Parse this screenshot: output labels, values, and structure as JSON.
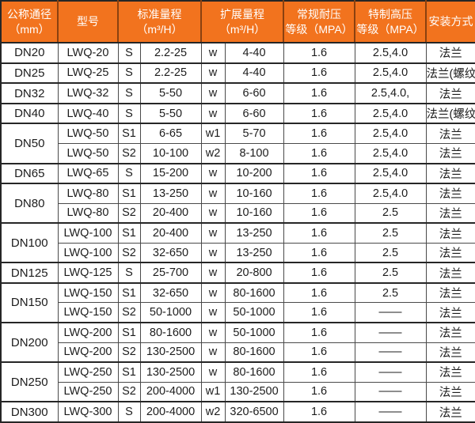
{
  "colors": {
    "header_bg": "#F2731E",
    "header_separator": "#8A4110",
    "header_text": "#FFFFFF",
    "grid_line": "#4A4A4A",
    "grid_line_strong": "#262626",
    "body_text": "#1C1C1C"
  },
  "table": {
    "headers": [
      {
        "label": "公称通径\n（mm）",
        "colspan": 1
      },
      {
        "label": "型号",
        "colspan": 1
      },
      {
        "label": "标准量程\n（m³/H）",
        "colspan": 2
      },
      {
        "label": "扩展量程\n（m³/H）",
        "colspan": 2
      },
      {
        "label": "常规耐压\n等级（MPA）",
        "colspan": 1
      },
      {
        "label": "特制高压\n等级（MPA）",
        "colspan": 1
      },
      {
        "label": "安装方式",
        "colspan": 1
      }
    ],
    "groups": [
      {
        "diameter": "DN20",
        "rows": [
          {
            "model": "LWQ-20",
            "std_code": "S",
            "std_range": "2.2-25",
            "ext_code": "w",
            "ext_range": "4-40",
            "normal_mpa": "1.6",
            "high_mpa": "2.5,4.0",
            "install": "法兰"
          }
        ]
      },
      {
        "diameter": "DN25",
        "rows": [
          {
            "model": "LWQ-25",
            "std_code": "S",
            "std_range": "2.2-25",
            "ext_code": "w",
            "ext_range": "4-40",
            "normal_mpa": "1.6",
            "high_mpa": "2.5,4.0",
            "install": "法兰(螺纹)"
          }
        ]
      },
      {
        "diameter": "DN32",
        "rows": [
          {
            "model": "LWQ-32",
            "std_code": "S",
            "std_range": "5-50",
            "ext_code": "w",
            "ext_range": "6-60",
            "normal_mpa": "1.6",
            "high_mpa": "2.5,4.0,",
            "install": "法兰"
          }
        ]
      },
      {
        "diameter": "DN40",
        "rows": [
          {
            "model": "LWQ-40",
            "std_code": "S",
            "std_range": "5-50",
            "ext_code": "w",
            "ext_range": "6-60",
            "normal_mpa": "1.6",
            "high_mpa": "2.5,4.0",
            "install": "法兰(螺纹)"
          }
        ]
      },
      {
        "diameter": "DN50",
        "rows": [
          {
            "model": "LWQ-50",
            "std_code": "S1",
            "std_range": "6-65",
            "ext_code": "w1",
            "ext_range": "5-70",
            "normal_mpa": "1.6",
            "high_mpa": "2.5,4.0",
            "install": "法兰"
          },
          {
            "model": "LWQ-50",
            "std_code": "S2",
            "std_range": "10-100",
            "ext_code": "w2",
            "ext_range": "8-100",
            "normal_mpa": "1.6",
            "high_mpa": "2.5,4.0",
            "install": "法兰"
          }
        ]
      },
      {
        "diameter": "DN65",
        "rows": [
          {
            "model": "LWQ-65",
            "std_code": "S",
            "std_range": "15-200",
            "ext_code": "w",
            "ext_range": "10-200",
            "normal_mpa": "1.6",
            "high_mpa": "2.5,4.0",
            "install": "法兰"
          }
        ]
      },
      {
        "diameter": "DN80",
        "rows": [
          {
            "model": "LWQ-80",
            "std_code": "S1",
            "std_range": "13-250",
            "ext_code": "w",
            "ext_range": "10-160",
            "normal_mpa": "1.6",
            "high_mpa": "2.5,4.0",
            "install": "法兰"
          },
          {
            "model": "LWQ-80",
            "std_code": "S2",
            "std_range": "20-400",
            "ext_code": "w",
            "ext_range": "10-160",
            "normal_mpa": "1.6",
            "high_mpa": "2.5",
            "install": "法兰"
          }
        ]
      },
      {
        "diameter": "DN100",
        "rows": [
          {
            "model": "LWQ-100",
            "std_code": "S1",
            "std_range": "20-400",
            "ext_code": "w",
            "ext_range": "13-250",
            "normal_mpa": "1.6",
            "high_mpa": "2.5",
            "install": "法兰"
          },
          {
            "model": "LWQ-100",
            "std_code": "S2",
            "std_range": "32-650",
            "ext_code": "w",
            "ext_range": "13-250",
            "normal_mpa": "1.6",
            "high_mpa": "2.5",
            "install": "法兰"
          }
        ]
      },
      {
        "diameter": "DN125",
        "rows": [
          {
            "model": "LWQ-125",
            "std_code": "S",
            "std_range": "25-700",
            "ext_code": "w",
            "ext_range": "20-800",
            "normal_mpa": "1.6",
            "high_mpa": "2.5",
            "install": "法兰"
          }
        ]
      },
      {
        "diameter": "DN150",
        "rows": [
          {
            "model": "LWQ-150",
            "std_code": "S1",
            "std_range": "32-650",
            "ext_code": "w",
            "ext_range": "80-1600",
            "normal_mpa": "1.6",
            "high_mpa": "2.5",
            "install": "法兰"
          },
          {
            "model": "LWQ-150",
            "std_code": "S2",
            "std_range": "50-1000",
            "ext_code": "w",
            "ext_range": "50-1000",
            "normal_mpa": "1.6",
            "high_mpa": "——",
            "install": "法兰"
          }
        ]
      },
      {
        "diameter": "DN200",
        "rows": [
          {
            "model": "LWQ-200",
            "std_code": "S1",
            "std_range": "80-1600",
            "ext_code": "w",
            "ext_range": "50-1000",
            "normal_mpa": "1.6",
            "high_mpa": "——",
            "install": "法兰"
          },
          {
            "model": "LWQ-200",
            "std_code": "S2",
            "std_range": "130-2500",
            "ext_code": "w",
            "ext_range": "80-1600",
            "normal_mpa": "1.6",
            "high_mpa": "——",
            "install": "法兰"
          }
        ]
      },
      {
        "diameter": "DN250",
        "rows": [
          {
            "model": "LWQ-250",
            "std_code": "S1",
            "std_range": "130-2500",
            "ext_code": "w",
            "ext_range": "80-1600",
            "normal_mpa": "1.6",
            "high_mpa": "——",
            "install": "法兰"
          },
          {
            "model": "LWQ-250",
            "std_code": "S2",
            "std_range": "200-4000",
            "ext_code": "w1",
            "ext_range": "130-2500",
            "normal_mpa": "1.6",
            "high_mpa": "——",
            "install": "法兰"
          }
        ]
      },
      {
        "diameter": "DN300",
        "rows": [
          {
            "model": "LWQ-300",
            "std_code": "S",
            "std_range": "200-4000",
            "ext_code": "w2",
            "ext_range": "320-6500",
            "normal_mpa": "1.6",
            "high_mpa": "——",
            "install": "法兰"
          }
        ]
      }
    ]
  }
}
